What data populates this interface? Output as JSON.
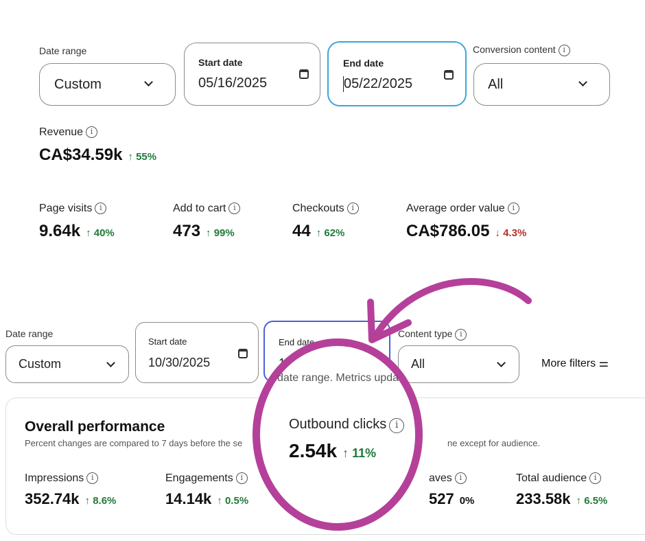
{
  "top": {
    "date_range_label": "Date range",
    "date_range_value": "Custom",
    "start_label": "Start date",
    "start_value": "05/16/2025",
    "end_label": "End date",
    "end_value": "05/22/2025",
    "conversion_label": "Conversion content",
    "conversion_value": "All",
    "revenue": {
      "name": "Revenue",
      "value": "CA$34.59k",
      "change": "55%"
    },
    "metrics": [
      {
        "name": "Page visits",
        "value": "9.64k",
        "change": "40%",
        "dir": "up"
      },
      {
        "name": "Add to cart",
        "value": "473",
        "change": "99%",
        "dir": "up"
      },
      {
        "name": "Checkouts",
        "value": "44",
        "change": "62%",
        "dir": "up"
      },
      {
        "name": "Average order value",
        "value": "CA$786.05",
        "change": "4.3%",
        "dir": "down"
      }
    ]
  },
  "bottom": {
    "date_range_label": "Date range",
    "date_range_value": "Custom",
    "start_label": "Start date",
    "start_value": "10/30/2025",
    "end_label": "End date",
    "end_value_partial": "11",
    "content_type_label": "Content type",
    "content_type_value": "All",
    "more_filters": "More filters",
    "hint_partial": "date range. Metrics upda",
    "title": "Overall performance",
    "subtitle_left": "Percent changes are compared to 7 days before the se",
    "subtitle_right": "ne except for audience.",
    "metrics": [
      {
        "name": "Impressions",
        "value": "352.74k",
        "change": "8.6%"
      },
      {
        "name": "Engagements",
        "value": "14.14k",
        "change": "0.5%"
      },
      {
        "name": "aves",
        "value": "527",
        "change": "0%"
      },
      {
        "name": "Total audience",
        "value": "233.58k",
        "change": "6.5%"
      }
    ]
  },
  "highlight": {
    "name": "Outbound clicks",
    "value": "2.54k",
    "change": "11%"
  },
  "colors": {
    "accent": "#b5409a",
    "up": "#1f7a3a",
    "down": "#b03030",
    "focus": "#3aa6d8",
    "focus2": "#4a5fd8"
  }
}
